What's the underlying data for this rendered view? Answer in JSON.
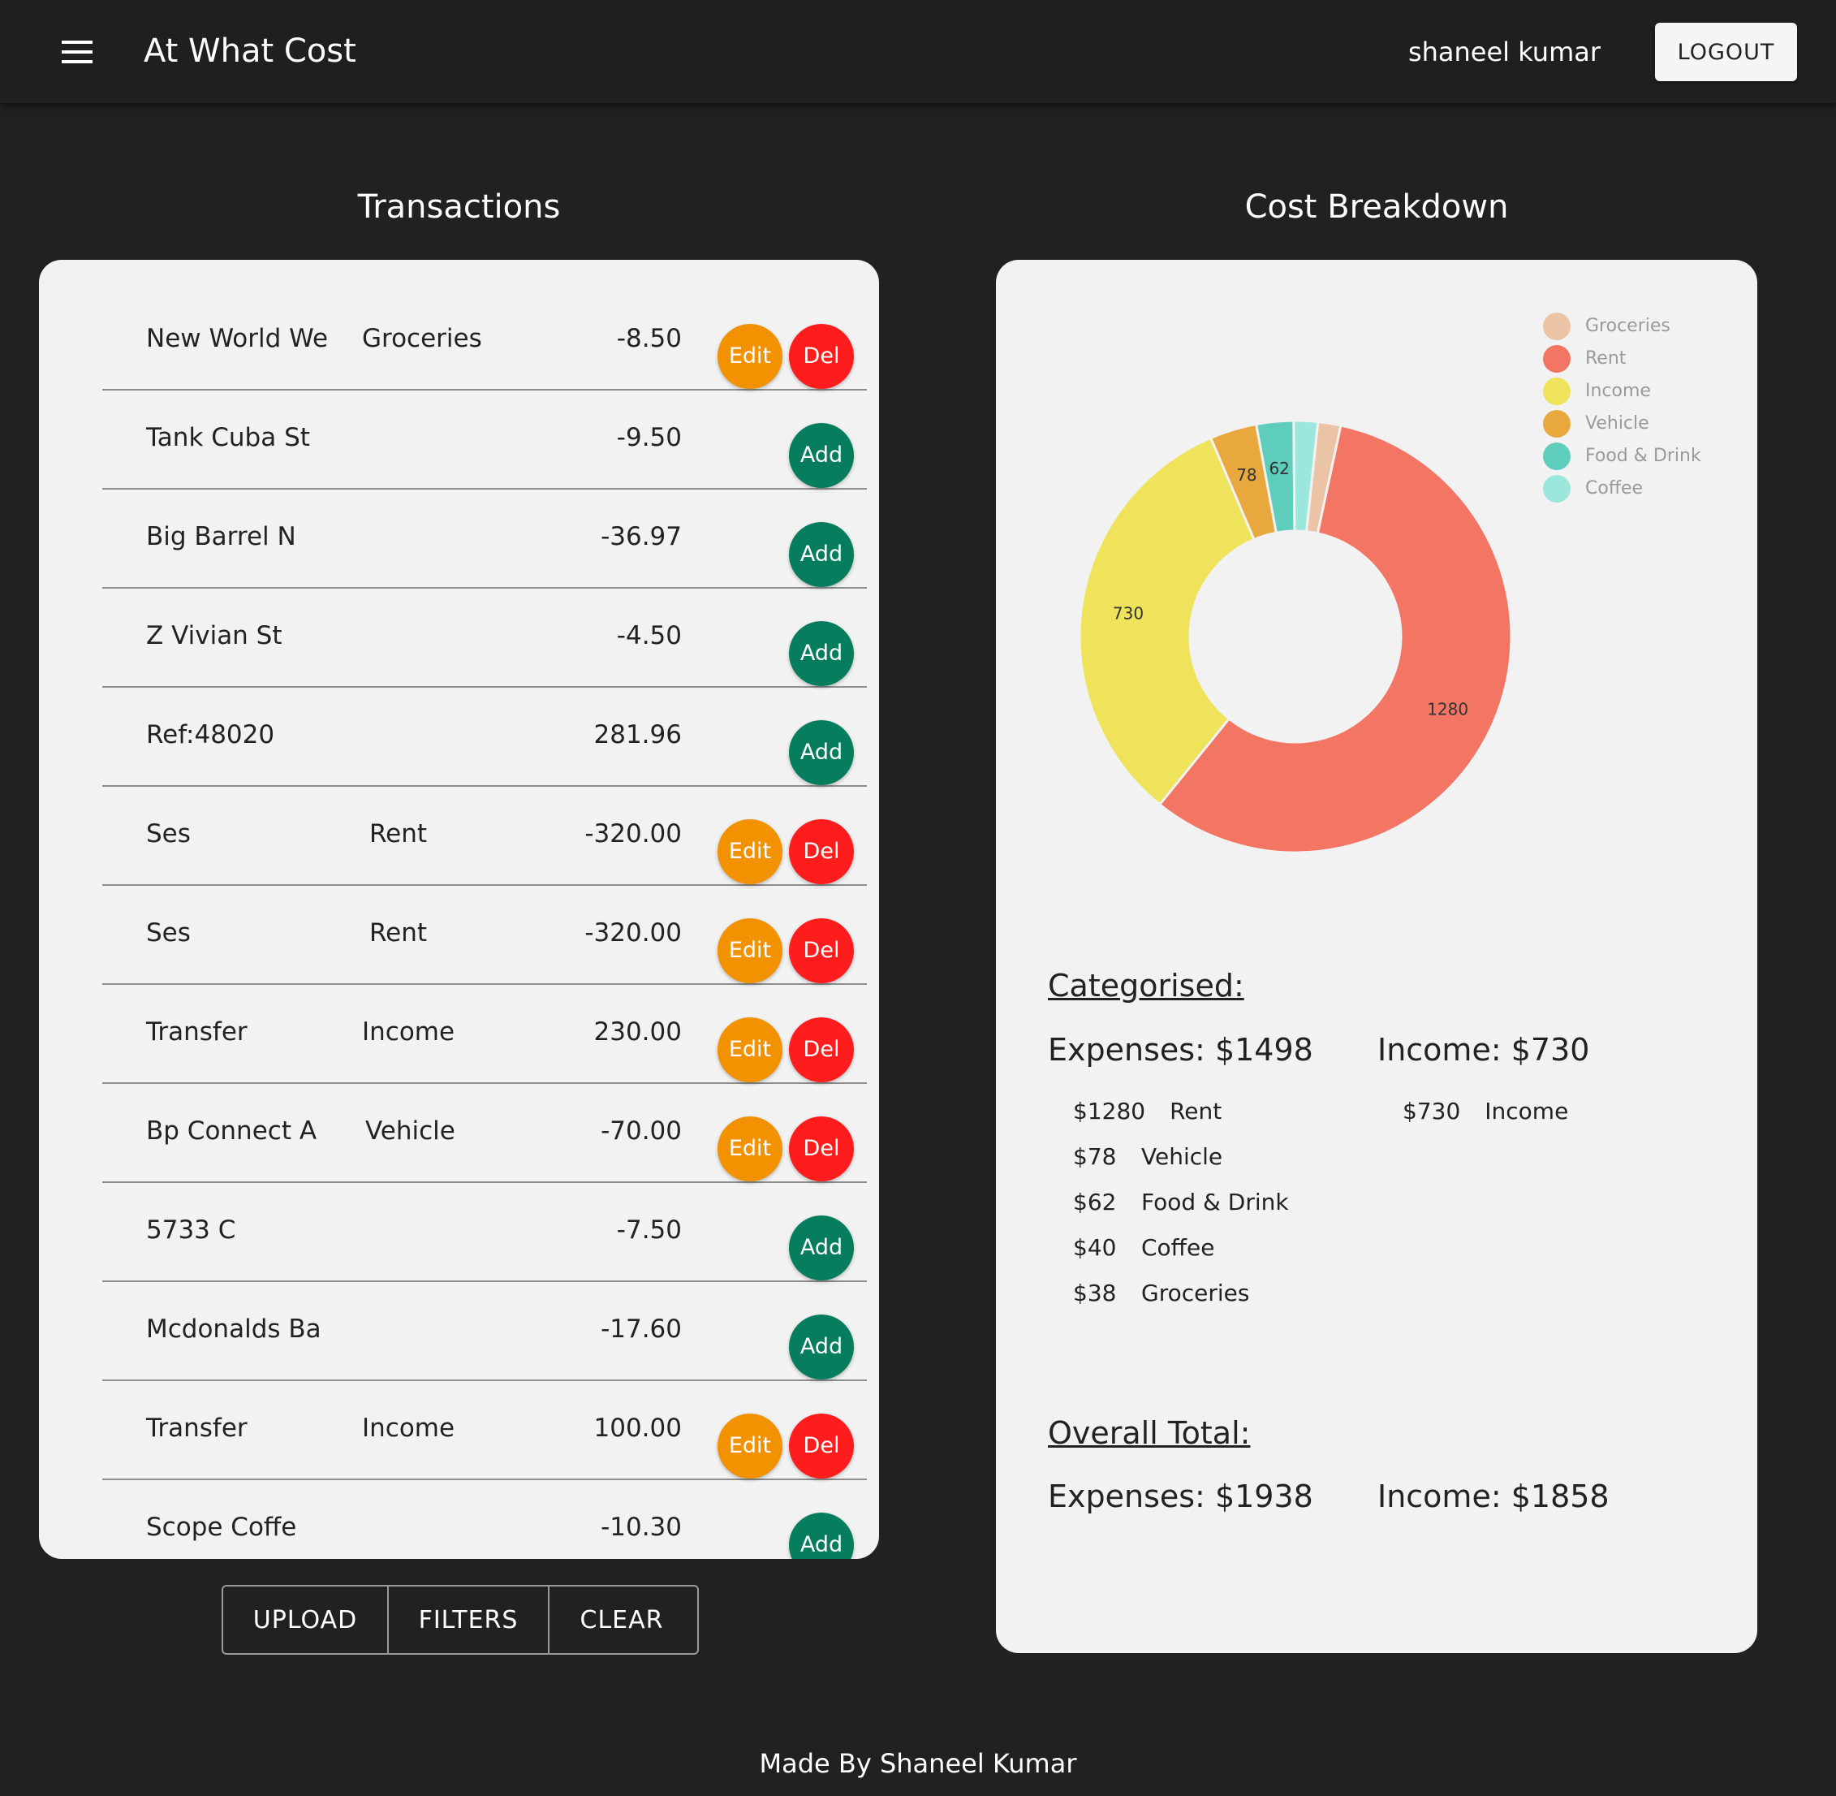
{
  "appbar": {
    "title": "At What Cost",
    "user": "shaneel kumar",
    "logout_label": "LOGOUT",
    "menu_icon": "hamburger-menu-icon"
  },
  "transactions": {
    "title": "Transactions",
    "rows": [
      {
        "desc": "New World We",
        "category": "Groceries",
        "amount": "-8.50",
        "actions": [
          "Edit",
          "Del"
        ]
      },
      {
        "desc": "Tank Cuba St",
        "category": "",
        "amount": "-9.50",
        "actions": [
          "Add"
        ]
      },
      {
        "desc": "Big Barrel N",
        "category": "",
        "amount": "-36.97",
        "actions": [
          "Add"
        ]
      },
      {
        "desc": "Z Vivian St",
        "category": "",
        "amount": "-4.50",
        "actions": [
          "Add"
        ]
      },
      {
        "desc": "Ref:48020",
        "category": "",
        "amount": "281.96",
        "actions": [
          "Add"
        ]
      },
      {
        "desc": "Ses",
        "category": "Rent",
        "amount": "-320.00",
        "actions": [
          "Edit",
          "Del"
        ]
      },
      {
        "desc": "Ses",
        "category": "Rent",
        "amount": "-320.00",
        "actions": [
          "Edit",
          "Del"
        ]
      },
      {
        "desc": "Transfer",
        "category": "Income",
        "amount": "230.00",
        "actions": [
          "Edit",
          "Del"
        ]
      },
      {
        "desc": "Bp Connect A",
        "category": "Vehicle",
        "amount": "-70.00",
        "actions": [
          "Edit",
          "Del"
        ]
      },
      {
        "desc": "5733 C",
        "category": "",
        "amount": "-7.50",
        "actions": [
          "Add"
        ]
      },
      {
        "desc": "Mcdonalds Ba",
        "category": "",
        "amount": "-17.60",
        "actions": [
          "Add"
        ]
      },
      {
        "desc": "Transfer",
        "category": "Income",
        "amount": "100.00",
        "actions": [
          "Edit",
          "Del"
        ]
      },
      {
        "desc": "Scope Coffe",
        "category": "",
        "amount": "-10.30",
        "actions": [
          "Add"
        ]
      }
    ],
    "buttons": {
      "upload": "UPLOAD",
      "filters": "FILTERS",
      "clear": "CLEAR"
    }
  },
  "breakdown": {
    "title": "Cost Breakdown",
    "categorised_heading": "Categorised:",
    "categorised_expenses": "Expenses: $1498",
    "categorised_income": "Income: $730",
    "expense_items": [
      {
        "amount": "$1280",
        "label": "Rent"
      },
      {
        "amount": "$78",
        "label": "Vehicle"
      },
      {
        "amount": "$62",
        "label": "Food & Drink"
      },
      {
        "amount": "$40",
        "label": "Coffee"
      },
      {
        "amount": "$38",
        "label": "Groceries"
      }
    ],
    "income_items": [
      {
        "amount": "$730",
        "label": "Income"
      }
    ],
    "overall_heading": "Overall Total:",
    "overall_expenses": "Expenses: $1938",
    "overall_income": "Income: $1858"
  },
  "chart_data": {
    "type": "pie",
    "variant": "doughnut",
    "legend_position": "top-right",
    "categories": [
      "Groceries",
      "Rent",
      "Income",
      "Vehicle",
      "Food & Drink",
      "Coffee"
    ],
    "values": [
      38,
      1280,
      730,
      78,
      62,
      40
    ],
    "data_labels": [
      "",
      "1280",
      "730",
      "78",
      "62",
      ""
    ],
    "colors": [
      "#ebc4a6",
      "#f37563",
      "#efe35c",
      "#e8a83e",
      "#5ecdbb",
      "#9be7db"
    ]
  },
  "footer": {
    "text": "Made By Shaneel Kumar"
  }
}
